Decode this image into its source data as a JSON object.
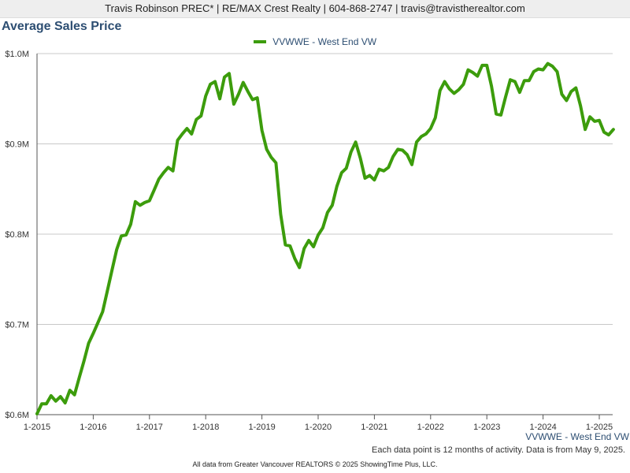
{
  "header": {
    "banner": "Travis Robinson PREC* | RE/MAX Crest Realty | 604-868-2747 | travis@travistherealtor.com"
  },
  "footer": {
    "note": "Each data point is 12 months of activity. Data is from May 9, 2025.",
    "credits": "All data from Greater Vancouver REALTORS © 2025 ShowingTime Plus, LLC."
  },
  "colors": {
    "series": "#3c9c0c",
    "title": "#2d4e72",
    "grid": "#c8c8c8",
    "axis": "#555555"
  },
  "chart_data": {
    "type": "line",
    "title": "Average Sales Price",
    "xlabel": "",
    "ylabel": "",
    "x_axis_annotation": "VVWWE - West End VW",
    "legend_position": "top-center",
    "grid": true,
    "ylim": [
      600000,
      1000000
    ],
    "y_ticks": [
      {
        "value": 600000,
        "label": "$0.6M"
      },
      {
        "value": 700000,
        "label": "$0.7M"
      },
      {
        "value": 800000,
        "label": "$0.8M"
      },
      {
        "value": 900000,
        "label": "$0.9M"
      },
      {
        "value": 1000000,
        "label": "$1.0M"
      }
    ],
    "x_ticks": [
      "1-2015",
      "1-2016",
      "1-2017",
      "1-2018",
      "1-2019",
      "1-2020",
      "1-2021",
      "1-2022",
      "1-2023",
      "1-2024",
      "1-2025"
    ],
    "x_start": "1-2015",
    "x_end": "4-2025",
    "series": [
      {
        "name": "VVWWE - West End VW",
        "values": [
          601000,
          612000,
          612000,
          621000,
          615000,
          620000,
          613000,
          627000,
          622000,
          641000,
          659000,
          679000,
          690000,
          702000,
          714000,
          737000,
          760000,
          783000,
          798000,
          799000,
          811000,
          836000,
          832000,
          835000,
          837000,
          849000,
          861000,
          868000,
          874000,
          870000,
          904000,
          911000,
          917000,
          911000,
          927000,
          931000,
          953000,
          966000,
          969000,
          950000,
          974000,
          978000,
          944000,
          955000,
          968000,
          958000,
          949000,
          951000,
          915000,
          894000,
          885000,
          879000,
          822000,
          788000,
          787000,
          773000,
          763000,
          784000,
          793000,
          786000,
          799000,
          807000,
          824000,
          832000,
          853000,
          868000,
          873000,
          891000,
          902000,
          884000,
          862000,
          865000,
          860000,
          872000,
          870000,
          874000,
          886000,
          894000,
          893000,
          888000,
          877000,
          902000,
          908000,
          911000,
          917000,
          929000,
          959000,
          969000,
          961000,
          956000,
          960000,
          966000,
          982000,
          979000,
          975000,
          987000,
          987000,
          964000,
          933000,
          932000,
          952000,
          971000,
          969000,
          957000,
          970000,
          970000,
          980000,
          983000,
          982000,
          989000,
          986000,
          980000,
          955000,
          948000,
          958000,
          962000,
          942000,
          916000,
          930000,
          925000,
          926000,
          913000,
          910000,
          916000
        ]
      }
    ]
  }
}
